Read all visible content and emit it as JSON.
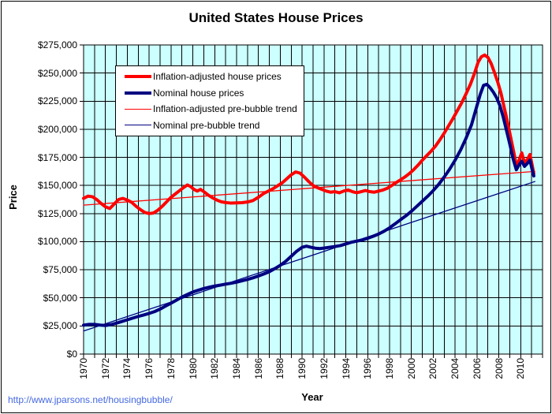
{
  "page": {
    "footer_link": "http://www.jparsons.net/housingbubble/"
  },
  "chart_data": {
    "type": "line",
    "title": "United States House Prices",
    "xlabel": "Year",
    "ylabel": "Price",
    "x_range": [
      1970,
      2012
    ],
    "y_range": [
      0,
      275000
    ],
    "y_tick_step": 25000,
    "x_grid_step": 1,
    "grid": "on",
    "plot_bg_color": "#CCFFFF",
    "grid_color": "#000000",
    "legend_position": "top-left-inside",
    "y_tick_labels": [
      "$0",
      "$25,000",
      "$50,000",
      "$75,000",
      "$100,000",
      "$125,000",
      "$150,000",
      "$175,000",
      "$200,000",
      "$225,000",
      "$250,000",
      "$275,000"
    ],
    "x_tick_labels": [
      "1970",
      "1972",
      "1974",
      "1976",
      "1978",
      "1980",
      "1982",
      "1984",
      "1986",
      "1988",
      "1990",
      "1992",
      "1994",
      "1996",
      "1998",
      "2000",
      "2002",
      "2004",
      "2006",
      "2008",
      "2010"
    ],
    "series": [
      {
        "name": "Inflation-adjusted house prices",
        "color": "#FF0000",
        "width": 4,
        "points": [
          [
            1970.0,
            138500
          ],
          [
            1970.4,
            140500
          ],
          [
            1970.8,
            140000
          ],
          [
            1971.2,
            137500
          ],
          [
            1971.6,
            134000
          ],
          [
            1972.0,
            131000
          ],
          [
            1972.4,
            129500
          ],
          [
            1972.8,
            133500
          ],
          [
            1973.2,
            137500
          ],
          [
            1973.6,
            138500
          ],
          [
            1974.0,
            137000
          ],
          [
            1974.4,
            135000
          ],
          [
            1974.8,
            131500
          ],
          [
            1975.2,
            128500
          ],
          [
            1975.6,
            126000
          ],
          [
            1976.0,
            125000
          ],
          [
            1976.4,
            125500
          ],
          [
            1976.8,
            128000
          ],
          [
            1977.2,
            131500
          ],
          [
            1977.6,
            135500
          ],
          [
            1978.0,
            139500
          ],
          [
            1978.4,
            142500
          ],
          [
            1978.8,
            145500
          ],
          [
            1979.2,
            148500
          ],
          [
            1979.5,
            150500
          ],
          [
            1979.8,
            149000
          ],
          [
            1980.1,
            146500
          ],
          [
            1980.4,
            145000
          ],
          [
            1980.7,
            146500
          ],
          [
            1981.0,
            144500
          ],
          [
            1981.4,
            141500
          ],
          [
            1981.8,
            139000
          ],
          [
            1982.2,
            137000
          ],
          [
            1982.6,
            135500
          ],
          [
            1983.0,
            134800
          ],
          [
            1983.5,
            134300
          ],
          [
            1984.0,
            134500
          ],
          [
            1984.5,
            134700
          ],
          [
            1985.0,
            135300
          ],
          [
            1985.5,
            136600
          ],
          [
            1986.0,
            139500
          ],
          [
            1986.5,
            143000
          ],
          [
            1987.0,
            145500
          ],
          [
            1987.4,
            147500
          ],
          [
            1987.8,
            150000
          ],
          [
            1988.2,
            152500
          ],
          [
            1988.6,
            156000
          ],
          [
            1989.0,
            159500
          ],
          [
            1989.4,
            162000
          ],
          [
            1989.8,
            161000
          ],
          [
            1990.2,
            157500
          ],
          [
            1990.6,
            153500
          ],
          [
            1991.0,
            150000
          ],
          [
            1991.4,
            148000
          ],
          [
            1991.8,
            146500
          ],
          [
            1992.2,
            145000
          ],
          [
            1992.6,
            144000
          ],
          [
            1993.0,
            144500
          ],
          [
            1993.4,
            143500
          ],
          [
            1993.8,
            145000
          ],
          [
            1994.2,
            146000
          ],
          [
            1994.6,
            144500
          ],
          [
            1995.0,
            143500
          ],
          [
            1995.4,
            144500
          ],
          [
            1995.8,
            145500
          ],
          [
            1996.2,
            144500
          ],
          [
            1996.6,
            144000
          ],
          [
            1997.0,
            145000
          ],
          [
            1997.4,
            146000
          ],
          [
            1997.8,
            147500
          ],
          [
            1998.2,
            150000
          ],
          [
            1998.6,
            152500
          ],
          [
            1999.0,
            155000
          ],
          [
            1999.4,
            157500
          ],
          [
            1999.8,
            160500
          ],
          [
            2000.2,
            164000
          ],
          [
            2000.6,
            168000
          ],
          [
            2001.0,
            172500
          ],
          [
            2001.4,
            176500
          ],
          [
            2001.8,
            180500
          ],
          [
            2002.2,
            185000
          ],
          [
            2002.6,
            190500
          ],
          [
            2003.0,
            196500
          ],
          [
            2003.4,
            203000
          ],
          [
            2003.8,
            209500
          ],
          [
            2004.2,
            216500
          ],
          [
            2004.6,
            223500
          ],
          [
            2005.0,
            231500
          ],
          [
            2005.4,
            240000
          ],
          [
            2005.8,
            250500
          ],
          [
            2006.1,
            259500
          ],
          [
            2006.4,
            264500
          ],
          [
            2006.7,
            266000
          ],
          [
            2007.0,
            264000
          ],
          [
            2007.3,
            258500
          ],
          [
            2007.6,
            250500
          ],
          [
            2007.9,
            242000
          ],
          [
            2008.2,
            232000
          ],
          [
            2008.5,
            219000
          ],
          [
            2008.8,
            206000
          ],
          [
            2009.1,
            192000
          ],
          [
            2009.4,
            178000
          ],
          [
            2009.65,
            166000
          ],
          [
            2009.9,
            174000
          ],
          [
            2010.1,
            179000
          ],
          [
            2010.35,
            170000
          ],
          [
            2010.6,
            173000
          ],
          [
            2010.85,
            177500
          ],
          [
            2011.05,
            168000
          ],
          [
            2011.2,
            160500
          ]
        ]
      },
      {
        "name": "Nominal house prices",
        "color": "#000080",
        "width": 4,
        "points": [
          [
            1970.0,
            25700
          ],
          [
            1970.5,
            26400
          ],
          [
            1971.0,
            26400
          ],
          [
            1971.5,
            25800
          ],
          [
            1972.0,
            25400
          ],
          [
            1972.5,
            26200
          ],
          [
            1973.0,
            27500
          ],
          [
            1973.5,
            29000
          ],
          [
            1974.0,
            30500
          ],
          [
            1974.5,
            32000
          ],
          [
            1975.0,
            33500
          ],
          [
            1975.5,
            34800
          ],
          [
            1976.0,
            36200
          ],
          [
            1976.5,
            37800
          ],
          [
            1977.0,
            40000
          ],
          [
            1977.5,
            42700
          ],
          [
            1978.0,
            45300
          ],
          [
            1978.5,
            48000
          ],
          [
            1979.0,
            50700
          ],
          [
            1979.5,
            53000
          ],
          [
            1980.0,
            55200
          ],
          [
            1980.5,
            56800
          ],
          [
            1981.0,
            58300
          ],
          [
            1981.5,
            59500
          ],
          [
            1982.0,
            60500
          ],
          [
            1982.5,
            61300
          ],
          [
            1983.0,
            62200
          ],
          [
            1983.5,
            63000
          ],
          [
            1984.0,
            64000
          ],
          [
            1984.5,
            65200
          ],
          [
            1985.0,
            66400
          ],
          [
            1985.5,
            67800
          ],
          [
            1986.0,
            69500
          ],
          [
            1986.5,
            71300
          ],
          [
            1987.0,
            73300
          ],
          [
            1987.5,
            76000
          ],
          [
            1988.0,
            79000
          ],
          [
            1988.5,
            82500
          ],
          [
            1989.0,
            87000
          ],
          [
            1989.5,
            91500
          ],
          [
            1990.0,
            95000
          ],
          [
            1990.4,
            96000
          ],
          [
            1990.8,
            95000
          ],
          [
            1991.2,
            94200
          ],
          [
            1991.6,
            93800
          ],
          [
            1992.0,
            94300
          ],
          [
            1992.5,
            95000
          ],
          [
            1993.0,
            95700
          ],
          [
            1993.5,
            96500
          ],
          [
            1994.0,
            98000
          ],
          [
            1994.5,
            99500
          ],
          [
            1995.0,
            100500
          ],
          [
            1995.5,
            101500
          ],
          [
            1996.0,
            103000
          ],
          [
            1996.5,
            104800
          ],
          [
            1997.0,
            106800
          ],
          [
            1997.5,
            109300
          ],
          [
            1998.0,
            112300
          ],
          [
            1998.5,
            115800
          ],
          [
            1999.0,
            119500
          ],
          [
            1999.5,
            123000
          ],
          [
            2000.0,
            127000
          ],
          [
            2000.5,
            131500
          ],
          [
            2001.0,
            136000
          ],
          [
            2001.5,
            140500
          ],
          [
            2002.0,
            145500
          ],
          [
            2002.5,
            151000
          ],
          [
            2003.0,
            157500
          ],
          [
            2003.5,
            164500
          ],
          [
            2004.0,
            172500
          ],
          [
            2004.5,
            181500
          ],
          [
            2005.0,
            192000
          ],
          [
            2005.5,
            204000
          ],
          [
            2006.0,
            221000
          ],
          [
            2006.3,
            231000
          ],
          [
            2006.6,
            239000
          ],
          [
            2006.9,
            240000
          ],
          [
            2007.2,
            237000
          ],
          [
            2007.5,
            233000
          ],
          [
            2007.8,
            228000
          ],
          [
            2008.1,
            221000
          ],
          [
            2008.4,
            211000
          ],
          [
            2008.7,
            199000
          ],
          [
            2009.0,
            187000
          ],
          [
            2009.3,
            174000
          ],
          [
            2009.6,
            164000
          ],
          [
            2009.9,
            169000
          ],
          [
            2010.1,
            171500
          ],
          [
            2010.35,
            167000
          ],
          [
            2010.6,
            169500
          ],
          [
            2010.85,
            172500
          ],
          [
            2011.05,
            164000
          ],
          [
            2011.2,
            158500
          ]
        ]
      },
      {
        "name": "Inflation-adjusted pre-bubble trend",
        "color": "#FF0000",
        "width": 1.3,
        "points": [
          [
            1970.0,
            132500
          ],
          [
            2011.3,
            162500
          ]
        ]
      },
      {
        "name": "Nominal pre-bubble trend",
        "color": "#000080",
        "width": 1.3,
        "points": [
          [
            1970.0,
            20500
          ],
          [
            2011.3,
            153500
          ]
        ]
      }
    ]
  }
}
